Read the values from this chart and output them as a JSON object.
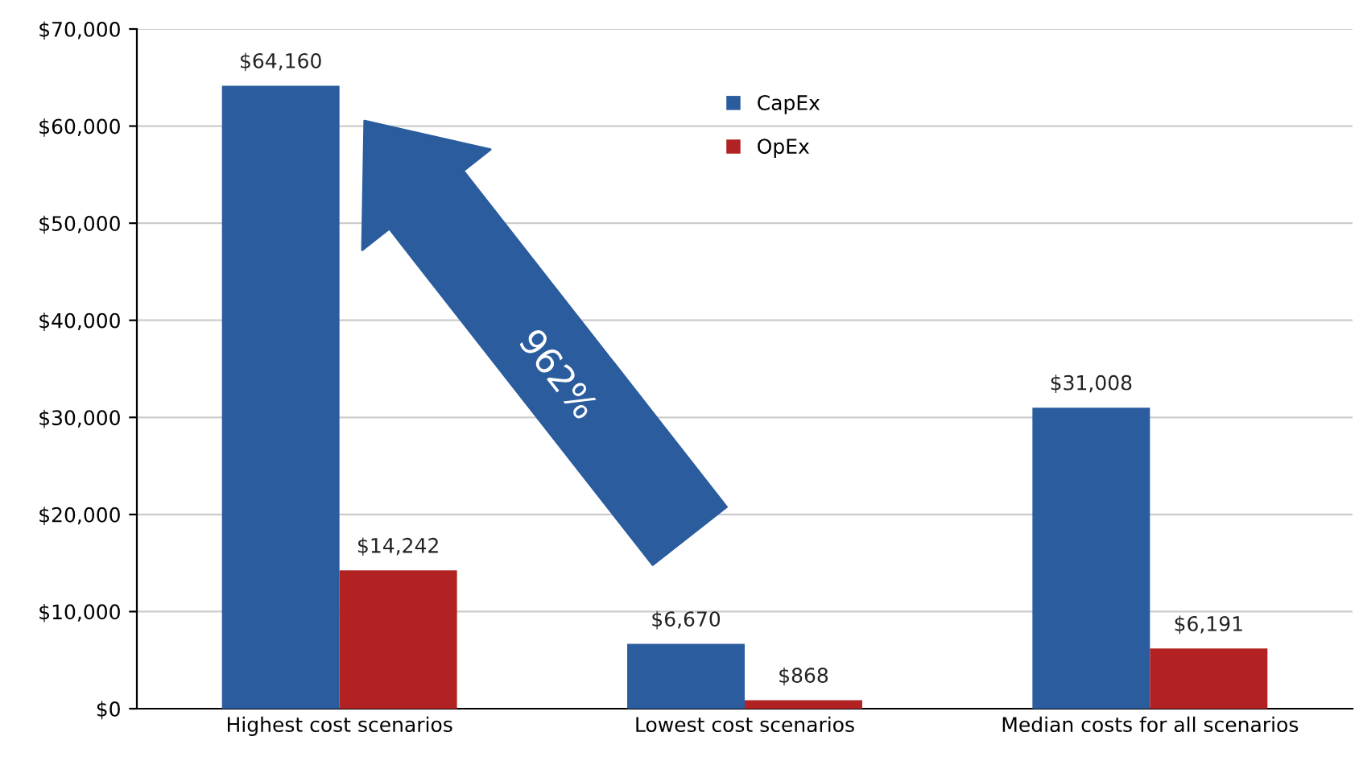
{
  "chart_data": {
    "type": "bar",
    "categories": [
      "Highest cost scenarios",
      "Lowest cost scenarios",
      "Median costs for all scenarios"
    ],
    "series": [
      {
        "name": "CapEx",
        "color": "#2a5c9e",
        "values": [
          64160,
          6670,
          31008
        ],
        "value_labels": [
          "$64,160",
          "$6,670",
          "$31,008"
        ]
      },
      {
        "name": "OpEx",
        "color": "#b22222",
        "values": [
          14242,
          868,
          6191
        ],
        "value_labels": [
          "$14,242",
          "$868",
          "$6,191"
        ]
      }
    ],
    "ylim": [
      0,
      70000
    ],
    "yticks": [
      {
        "value": 0,
        "label": "$0"
      },
      {
        "value": 10000,
        "label": "$10,000"
      },
      {
        "value": 20000,
        "label": "$20,000"
      },
      {
        "value": 30000,
        "label": "$30,000"
      },
      {
        "value": 40000,
        "label": "$40,000"
      },
      {
        "value": 50000,
        "label": "$50,000"
      },
      {
        "value": 60000,
        "label": "$60,000"
      },
      {
        "value": 70000,
        "label": "$70,000"
      }
    ],
    "grid": "y",
    "legend": "top",
    "annotations": [
      "962%"
    ]
  }
}
